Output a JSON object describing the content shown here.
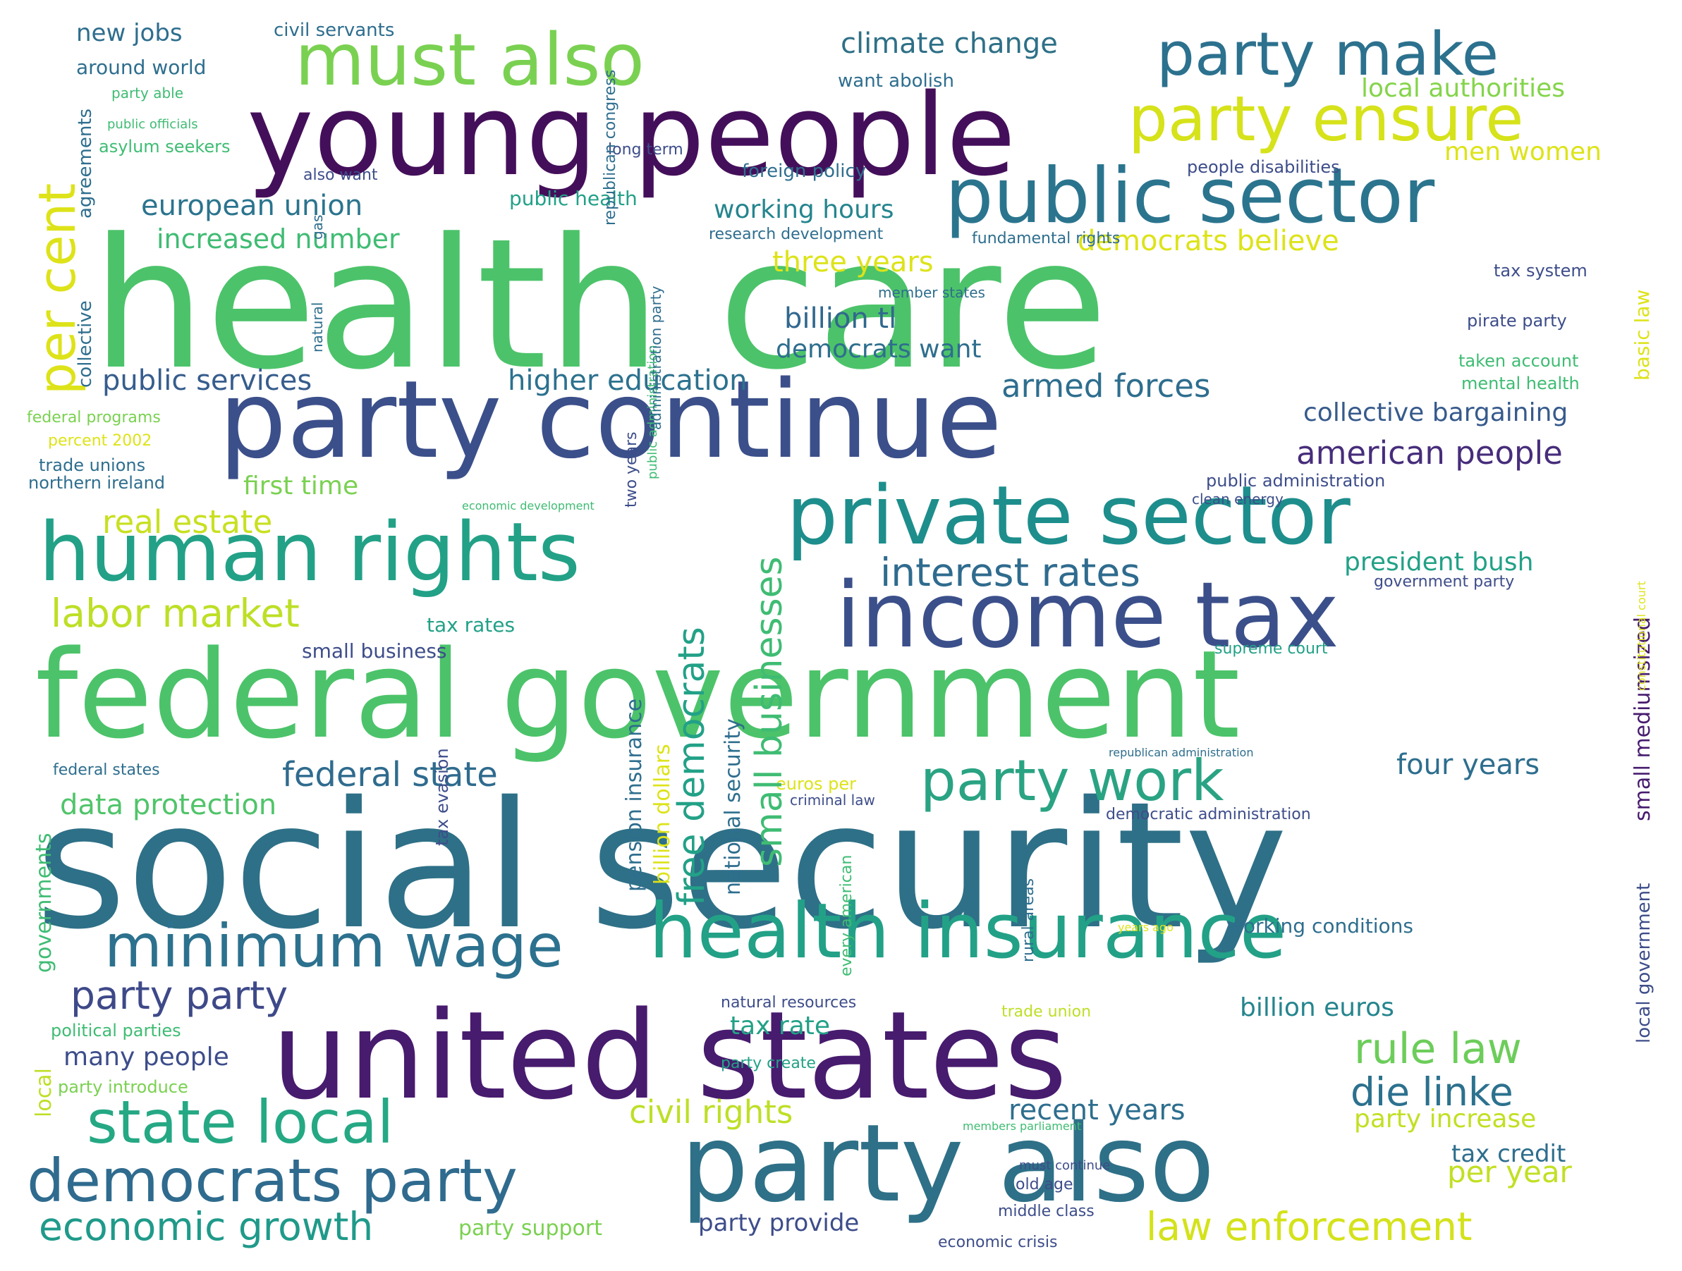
{
  "words": [
    {
      "text": "health care",
      "color": "#4cc36a"
    },
    {
      "text": "social security",
      "color": "#2e7087"
    },
    {
      "text": "united states",
      "color": "#471b6e"
    },
    {
      "text": "federal government",
      "color": "#4cc36a"
    },
    {
      "text": "young people",
      "color": "#440f5a"
    },
    {
      "text": "party continue",
      "color": "#3b4f8a"
    },
    {
      "text": "party also",
      "color": "#2e7087"
    },
    {
      "text": "income tax",
      "color": "#3b4f8a"
    },
    {
      "text": "human rights",
      "color": "#22a187"
    },
    {
      "text": "private sector",
      "color": "#1d8e8c"
    },
    {
      "text": "public sector",
      "color": "#2b748e"
    },
    {
      "text": "health insurance",
      "color": "#22a187"
    },
    {
      "text": "party make",
      "color": "#2c718e"
    },
    {
      "text": "must also",
      "color": "#7ad151"
    },
    {
      "text": "party ensure",
      "color": "#d6e21a"
    },
    {
      "text": "minimum wage",
      "color": "#2c718e"
    },
    {
      "text": "state local",
      "color": "#25a884"
    },
    {
      "text": "democrats party",
      "color": "#2f6b8e"
    },
    {
      "text": "party work",
      "color": "#2aa383"
    },
    {
      "text": "economic growth",
      "color": "#1f9a8a"
    },
    {
      "text": "law enforcement",
      "color": "#d4e21a"
    },
    {
      "text": "per cent",
      "color": "#dde318"
    },
    {
      "text": "interest rates",
      "color": "#2f6b8e"
    },
    {
      "text": "labor market",
      "color": "#bddf26"
    },
    {
      "text": "real estate",
      "color": "#c8e020"
    },
    {
      "text": "climate change",
      "color": "#2e7087"
    },
    {
      "text": "european union",
      "color": "#2b748e"
    },
    {
      "text": "increased number",
      "color": "#3fbc73"
    },
    {
      "text": "public services",
      "color": "#365d8d"
    },
    {
      "text": "higher education",
      "color": "#2c718e"
    },
    {
      "text": "armed forces",
      "color": "#2e6e8e"
    },
    {
      "text": "american people",
      "color": "#472d7b"
    },
    {
      "text": "collective bargaining",
      "color": "#375a8c"
    },
    {
      "text": "rule law",
      "color": "#6ccd5a"
    },
    {
      "text": "die linke",
      "color": "#2c718e"
    },
    {
      "text": "civil rights",
      "color": "#bddf26"
    },
    {
      "text": "recent years",
      "color": "#2e6e8e"
    },
    {
      "text": "party party",
      "color": "#3e4989"
    },
    {
      "text": "federal state",
      "color": "#2f6b8e"
    },
    {
      "text": "data protection",
      "color": "#50c46a"
    },
    {
      "text": "four years",
      "color": "#2e6e8e"
    },
    {
      "text": "three years",
      "color": "#dde318"
    },
    {
      "text": "billion tl",
      "color": "#31688e"
    },
    {
      "text": "democrats want",
      "color": "#2e6e8e"
    },
    {
      "text": "working hours",
      "color": "#25858e"
    },
    {
      "text": "democrats believe",
      "color": "#dde318"
    },
    {
      "text": "local authorities",
      "color": "#84d44b"
    },
    {
      "text": "men women",
      "color": "#dde318"
    },
    {
      "text": "president bush",
      "color": "#22a187"
    },
    {
      "text": "many people",
      "color": "#3d4d8a"
    },
    {
      "text": "billion euros",
      "color": "#25858e"
    },
    {
      "text": "party increase",
      "color": "#c2df23"
    },
    {
      "text": "per year",
      "color": "#c2df23"
    },
    {
      "text": "tax credit",
      "color": "#2e6e8e"
    },
    {
      "text": "tax rate",
      "color": "#22a187"
    },
    {
      "text": "party provide",
      "color": "#3d4d8a"
    },
    {
      "text": "new jobs",
      "color": "#2e6e8e"
    },
    {
      "text": "around world",
      "color": "#2e6e8e"
    },
    {
      "text": "civil servants",
      "color": "#2e6e8e"
    },
    {
      "text": "first time",
      "color": "#7ad151"
    },
    {
      "text": "small business",
      "color": "#3d4d8a"
    },
    {
      "text": "tax rates",
      "color": "#22a187"
    },
    {
      "text": "public health",
      "color": "#22a187"
    },
    {
      "text": "foreign policy",
      "color": "#2e6e8e"
    },
    {
      "text": "want abolish",
      "color": "#2e6e8e"
    },
    {
      "text": "research development",
      "color": "#2e6e8e"
    },
    {
      "text": "fundamental rights",
      "color": "#2e6e8e"
    },
    {
      "text": "people disabilities",
      "color": "#3d4d8a"
    },
    {
      "text": "tax system",
      "color": "#3d4d8a"
    },
    {
      "text": "pirate party",
      "color": "#3d4d8a"
    },
    {
      "text": "taken account",
      "color": "#3fbc73"
    },
    {
      "text": "mental health",
      "color": "#3fbc73"
    },
    {
      "text": "public administration",
      "color": "#3d4d8a"
    },
    {
      "text": "government party",
      "color": "#3d4d8a"
    },
    {
      "text": "supreme court",
      "color": "#22a187"
    },
    {
      "text": "working conditions",
      "color": "#2e6e8e"
    },
    {
      "text": "political parties",
      "color": "#3fbc73"
    },
    {
      "text": "party introduce",
      "color": "#7ad151"
    },
    {
      "text": "trade unions",
      "color": "#2e6e8e"
    },
    {
      "text": "northern ireland",
      "color": "#2e6e8e"
    },
    {
      "text": "asylum seekers",
      "color": "#3fbc73"
    },
    {
      "text": "also want",
      "color": "#3d4d8a"
    },
    {
      "text": "long term",
      "color": "#3d4d8a"
    },
    {
      "text": "federal states",
      "color": "#2e6e8e"
    },
    {
      "text": "middle class",
      "color": "#3d4d8a"
    },
    {
      "text": "economic crisis",
      "color": "#3d4d8a"
    },
    {
      "text": "party support",
      "color": "#7ad151"
    },
    {
      "text": "old age",
      "color": "#3d4d8a"
    },
    {
      "text": "must continue",
      "color": "#3d4d8a"
    },
    {
      "text": "natural resources",
      "color": "#3d4d8a"
    },
    {
      "text": "party create",
      "color": "#22a187"
    },
    {
      "text": "members parliament",
      "color": "#3fbc73"
    },
    {
      "text": "clean energy",
      "color": "#3d4d8a"
    },
    {
      "text": "criminal law",
      "color": "#3d4d8a"
    },
    {
      "text": "percent 2002",
      "color": "#dde318"
    },
    {
      "text": "federal programs",
      "color": "#7ad151"
    },
    {
      "text": "democratic administration",
      "color": "#3d4d8a"
    },
    {
      "text": "euros per",
      "color": "#dde318"
    },
    {
      "text": "trade union",
      "color": "#bddf26"
    },
    {
      "text": "member states",
      "color": "#2e6e8e"
    },
    {
      "text": "party able",
      "color": "#3fbc73"
    },
    {
      "text": "public officials",
      "color": "#3fbc73"
    },
    {
      "text": "republican administration",
      "color": "#2e6e8e"
    },
    {
      "text": "economic development",
      "color": "#3fbc73"
    },
    {
      "text": "years ago",
      "color": "#dde318"
    },
    {
      "text": "free democrats",
      "color": "#22a187"
    },
    {
      "text": "small businesses",
      "color": "#3fbc73"
    },
    {
      "text": "national security",
      "color": "#2e6e8e"
    },
    {
      "text": "billion dollars",
      "color": "#dde318"
    },
    {
      "text": "pension insurance",
      "color": "#2e6e8e"
    },
    {
      "text": "two years",
      "color": "#3d4d8a"
    },
    {
      "text": "public administration",
      "color": "#3fbc73"
    },
    {
      "text": "administration party",
      "color": "#2e6e8e"
    },
    {
      "text": "republican congress",
      "color": "#2e6e8e"
    },
    {
      "text": "agreements",
      "color": "#2e6e8e"
    },
    {
      "text": "collective",
      "color": "#2e6e8e"
    },
    {
      "text": "governments",
      "color": "#3fbc73"
    },
    {
      "text": "local",
      "color": "#bddf26"
    },
    {
      "text": "gas",
      "color": "#2e6e8e"
    },
    {
      "text": "natural",
      "color": "#2e6e8e"
    },
    {
      "text": "tax evasion",
      "color": "#3d4d8a"
    },
    {
      "text": "rural areas",
      "color": "#2e6e8e"
    },
    {
      "text": "every american",
      "color": "#3fbc73"
    },
    {
      "text": "basic law",
      "color": "#dde318"
    },
    {
      "text": "small mediumsized",
      "color": "#471b6e"
    },
    {
      "text": "local government",
      "color": "#3d4d8a"
    },
    {
      "text": "constitutional court",
      "color": "#dde318"
    }
  ]
}
